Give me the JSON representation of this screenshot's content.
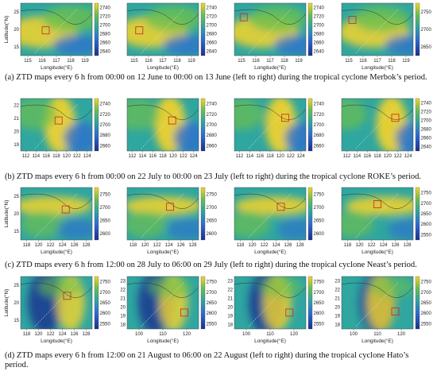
{
  "rows": [
    {
      "caption": "(a) ZTD maps every 6 h from 00:00 on 12 June to 00:00 on 13 June (left to right) during the tropical cyclone Merbok’s period.",
      "panels": [
        {
          "xticks": [
            "115",
            "116",
            "117",
            "118",
            "119"
          ],
          "yticks": [
            "25",
            "20",
            "15"
          ],
          "cb": [
            "2740",
            "2720",
            "2700",
            "2680",
            "2660",
            "2640"
          ],
          "xlabel": "Longitude(°E)",
          "ylabel": "Latitude(°N)"
        },
        {
          "xticks": [
            "115",
            "116",
            "117",
            "118",
            "119"
          ],
          "yticks": [],
          "cb": [
            "2740",
            "2720",
            "2700",
            "2680",
            "2660",
            "2640"
          ],
          "xlabel": "Longitude(°E)",
          "ylabel": ""
        },
        {
          "xticks": [
            "115",
            "116",
            "117",
            "118",
            "119"
          ],
          "yticks": [],
          "cb": [
            "2740",
            "2720",
            "2700",
            "2680",
            "2660",
            "2640"
          ],
          "xlabel": "Longitude(°E)",
          "ylabel": ""
        },
        {
          "xticks": [
            "115",
            "116",
            "117",
            "118",
            "119"
          ],
          "yticks": [],
          "cb": [
            "2750",
            "2700",
            "2650"
          ],
          "xlabel": "Longitude(°E)",
          "ylabel": ""
        }
      ]
    },
    {
      "caption": "(b) ZTD maps every 6 h from 00:00 on 22 July to 00:00 on 23 July (left to right) during the tropical cyclone ROKE’s period.",
      "panels": [
        {
          "xticks": [
            "112",
            "114",
            "116",
            "118",
            "120",
            "122",
            "124"
          ],
          "yticks": [
            "22",
            "21",
            "20",
            "19"
          ],
          "cb": [
            "2740",
            "2720",
            "2700",
            "2680",
            "2660"
          ],
          "xlabel": "",
          "ylabel": ""
        },
        {
          "xticks": [
            "112",
            "114",
            "116",
            "118",
            "120",
            "122",
            "124"
          ],
          "yticks": [],
          "cb": [
            "2740",
            "2720",
            "2700",
            "2680",
            "2660"
          ],
          "xlabel": "",
          "ylabel": ""
        },
        {
          "xticks": [
            "112",
            "114",
            "116",
            "118",
            "120",
            "122",
            "124"
          ],
          "yticks": [],
          "cb": [
            "2740",
            "2720",
            "2700",
            "2680",
            "2660"
          ],
          "xlabel": "",
          "ylabel": ""
        },
        {
          "xticks": [
            "112",
            "114",
            "116",
            "118",
            "120",
            "122",
            "124"
          ],
          "yticks": [],
          "cb": [
            "2740",
            "2720",
            "2700",
            "2680",
            "2660",
            "2640"
          ],
          "xlabel": "",
          "ylabel": ""
        }
      ]
    },
    {
      "caption": "(c) ZTD maps every 6 h from 12:00 on 28 July to 06:00 on 29 July (left to right) during the tropical cyclone Neast’s period.",
      "panels": [
        {
          "xticks": [
            "118",
            "120",
            "122",
            "124",
            "126",
            "128"
          ],
          "yticks": [
            "25",
            "20",
            "15"
          ],
          "cb": [
            "2750",
            "2700",
            "2650",
            "2600"
          ],
          "xlabel": "Longitude(°E)",
          "ylabel": "Latitude(°N)"
        },
        {
          "xticks": [
            "118",
            "120",
            "122",
            "124",
            "126",
            "128"
          ],
          "yticks": [],
          "cb": [
            "2750",
            "2700",
            "2650",
            "2600"
          ],
          "xlabel": "Longitude(°E)",
          "ylabel": ""
        },
        {
          "xticks": [
            "118",
            "120",
            "122",
            "124",
            "126",
            "128"
          ],
          "yticks": [],
          "cb": [
            "2750",
            "2700",
            "2650",
            "2600"
          ],
          "xlabel": "Longitude(°E)",
          "ylabel": ""
        },
        {
          "xticks": [
            "118",
            "120",
            "122",
            "124",
            "126",
            "128"
          ],
          "yticks": [],
          "cb": [
            "2750",
            "2700",
            "2650",
            "2600",
            "2550"
          ],
          "xlabel": "Longitude(°E)",
          "ylabel": ""
        }
      ]
    },
    {
      "caption": "(d) ZTD maps every 6 h from 12:00 on 21 August to 06:00 on 22 August (left to right) during the tropical cyclone Hato’s period.",
      "panels": [
        {
          "xticks": [
            "118",
            "120",
            "122",
            "124",
            "126",
            "128"
          ],
          "yticks": [
            "25",
            "20",
            "15"
          ],
          "cb": [
            "2750",
            "2700",
            "2650",
            "2600",
            "2550"
          ],
          "xlabel": "Longitude(°E)",
          "ylabel": "Latitude(°N)"
        },
        {
          "xticks": [
            "100",
            "110",
            "120"
          ],
          "yticks": [
            "23",
            "22",
            "21",
            "20",
            "19",
            "18"
          ],
          "cb": [
            "2750",
            "2700",
            "2650",
            "2600",
            "2550"
          ],
          "xlabel": "Longitude(°E)",
          "ylabel": ""
        },
        {
          "xticks": [
            "100",
            "110",
            "120"
          ],
          "yticks": [
            "23",
            "22",
            "21",
            "20",
            "19",
            "18"
          ],
          "cb": [
            "2750",
            "2700",
            "2650",
            "2600",
            "2550"
          ],
          "xlabel": "Longitude(°E)",
          "ylabel": ""
        },
        {
          "xticks": [
            "100",
            "110",
            "120"
          ],
          "yticks": [
            "23",
            "22",
            "21",
            "20",
            "19",
            "18"
          ],
          "cb": [
            "2750",
            "2700",
            "2650",
            "2600",
            "2550"
          ],
          "xlabel": "Longitude(°E)",
          "ylabel": ""
        }
      ]
    }
  ],
  "colors": {
    "deep": "#1c2f8f",
    "blue": "#2f6bd2",
    "teal": "#2fa6a0",
    "green": "#6bbf4f",
    "yellow": "#f6d42a",
    "box": "#d0202a"
  }
}
